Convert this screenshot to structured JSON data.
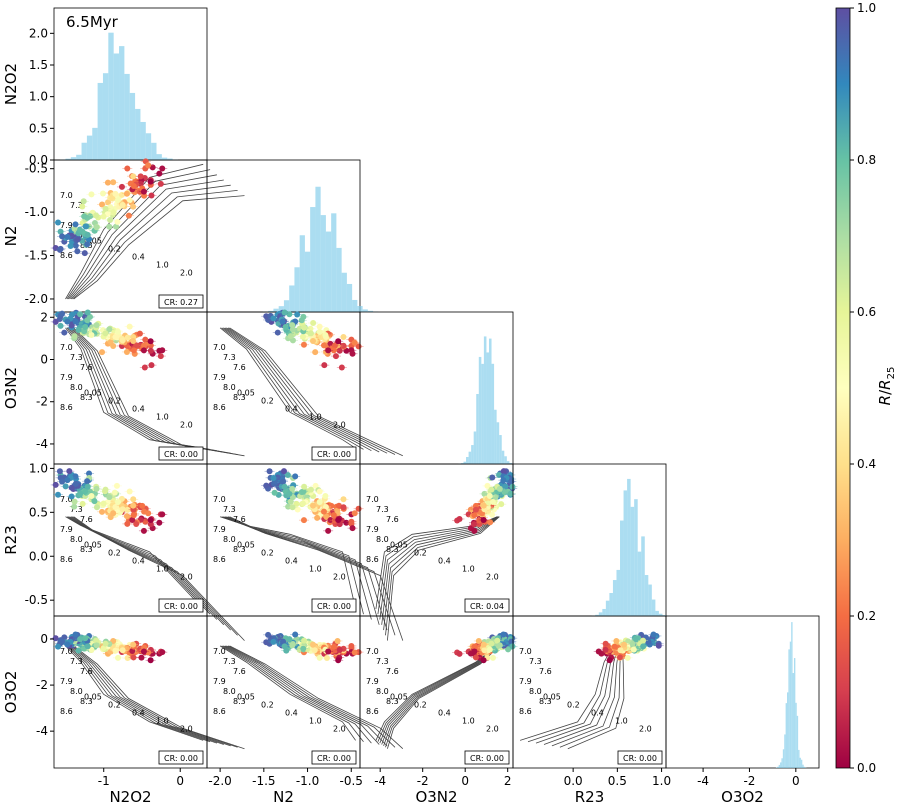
{
  "chart_data": {
    "type": "corner_plot",
    "title": "6.5Myr",
    "variables": [
      "N2O2",
      "N2",
      "O3N2",
      "R23",
      "O3O2"
    ],
    "axis_ranges": {
      "N2O2": [
        -1.65,
        0.35
      ],
      "N2": [
        -2.15,
        -0.4
      ],
      "O3N2": [
        -4.95,
        2.25
      ],
      "R23": [
        -0.68,
        1.05
      ],
      "O3O2": [
        -5.6,
        1.0
      ],
      "hist_N2O2": [
        0,
        2.4
      ]
    },
    "ticks": {
      "N2O2": [
        "-1",
        "0"
      ],
      "N2": [
        "-2.0",
        "-1.5",
        "-1.0",
        "-0.5"
      ],
      "O3N2": [
        "-4",
        "-2",
        "0",
        "2"
      ],
      "R23": [
        "0.0",
        "0.5",
        "1.0"
      ],
      "O3O2": [
        "-4",
        "-2",
        "0"
      ],
      "N2_y": [
        "-0.5",
        "-1.0",
        "-1.5",
        "-2.0"
      ],
      "O3N2_y": [
        "2",
        "0",
        "-2",
        "-4"
      ],
      "R23_y": [
        "1.0",
        "0.5",
        "0.0",
        "-0.5"
      ],
      "O3O2_y": [
        "0",
        "-2",
        "-4"
      ],
      "hist_y": [
        "2.0",
        "1.5",
        "1.0",
        "0.5",
        "0.0"
      ]
    },
    "colorbar": {
      "label": "R/R25",
      "range": [
        0.0,
        1.0
      ],
      "ticks": [
        "0.0",
        "0.2",
        "0.4",
        "0.6",
        "0.8",
        "1.0"
      ],
      "colormap": "Spectral"
    },
    "grid_labels": {
      "metallicity": [
        "7.0",
        "7.3",
        "7.6",
        "7.9",
        "8.0",
        "8.3",
        "8.6"
      ],
      "ionization": [
        "0.05",
        "0.2",
        "0.4",
        "1.0",
        "2.0"
      ]
    },
    "correlation_ratios": [
      {
        "x": "N2O2",
        "y": "N2",
        "label": "CR: 0.27"
      },
      {
        "x": "N2O2",
        "y": "O3N2",
        "label": "CR: 0.00"
      },
      {
        "x": "N2",
        "y": "O3N2",
        "label": "CR: 0.00"
      },
      {
        "x": "N2O2",
        "y": "R23",
        "label": "CR: 0.00"
      },
      {
        "x": "N2",
        "y": "R23",
        "label": "CR: 0.00"
      },
      {
        "x": "O3N2",
        "y": "R23",
        "label": "CR: 0.04"
      },
      {
        "x": "N2O2",
        "y": "O3O2",
        "label": "CR: 0.00"
      },
      {
        "x": "N2",
        "y": "O3O2",
        "label": "CR: 0.00"
      },
      {
        "x": "O3N2",
        "y": "O3O2",
        "label": "CR: 0.00"
      },
      {
        "x": "R23",
        "y": "O3O2",
        "label": "CR: 0.00"
      }
    ],
    "data_clusters": {
      "N2O2": {
        "center": -0.8,
        "spread": 0.35
      },
      "N2": {
        "center": -0.85,
        "spread": 0.3
      },
      "O3N2": {
        "center": 1.0,
        "spread": 0.6
      },
      "R23": {
        "center": 0.65,
        "spread": 0.2
      },
      "O3O2": {
        "center": -0.2,
        "spread": 0.3
      }
    }
  }
}
